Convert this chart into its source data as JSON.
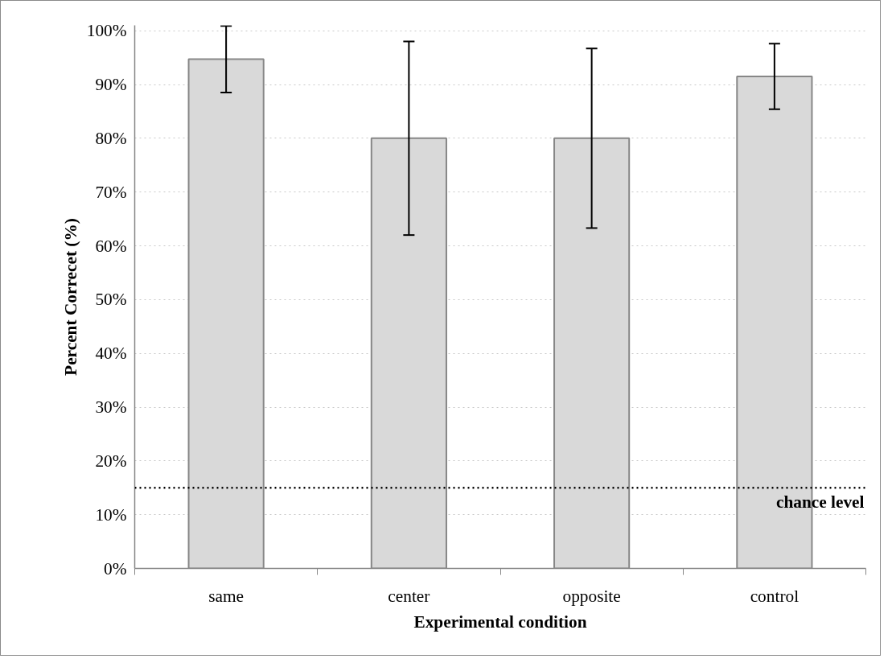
{
  "chart_data": {
    "type": "bar",
    "xlabel": "Experimental condition",
    "ylabel": "Percent Correcet (%)",
    "categories": [
      "same",
      "center",
      "opposite",
      "control"
    ],
    "values": [
      94.7,
      80.0,
      80.0,
      91.5
    ],
    "errors": [
      6.2,
      18.0,
      16.7,
      6.1
    ],
    "color": "#d9d9d9",
    "ylim": [
      0,
      101
    ],
    "yticks": [
      {
        "value": 0,
        "label": "0%"
      },
      {
        "value": 10,
        "label": "10%"
      },
      {
        "value": 20,
        "label": "20%"
      },
      {
        "value": 30,
        "label": "30%"
      },
      {
        "value": 40,
        "label": "40%"
      },
      {
        "value": 50,
        "label": "50%"
      },
      {
        "value": 60,
        "label": "60%"
      },
      {
        "value": 70,
        "label": "70%"
      },
      {
        "value": 80,
        "label": "80%"
      },
      {
        "value": 90,
        "label": "90%"
      },
      {
        "value": 100,
        "label": "100%"
      }
    ],
    "grid": "y",
    "ref_lines": [
      {
        "axis": "y",
        "value": 15,
        "label": "chance level",
        "color": "#000000",
        "line_style": "dotted"
      }
    ]
  }
}
